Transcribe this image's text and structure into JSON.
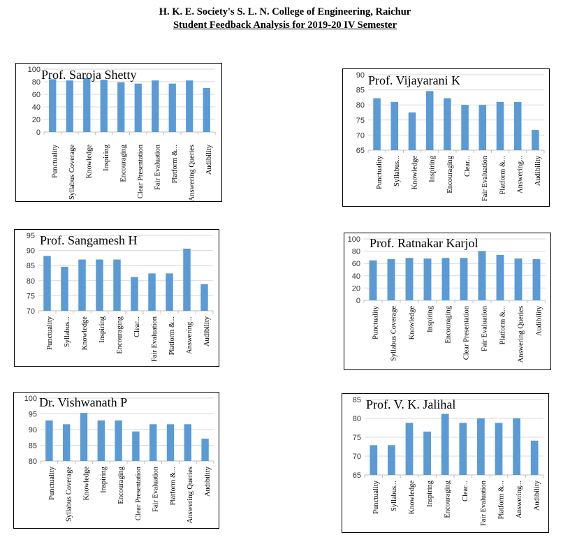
{
  "header": {
    "line1": "H. K. E. Society's S. L. N. College of Engineering, Raichur",
    "line2": "Student Feedback Analysis for 2019-20 IV Semester"
  },
  "colors": {
    "bar": "#5b9bd5",
    "grid": "#d9d9d9",
    "axis": "#bfbfbf"
  },
  "chart_data": [
    {
      "type": "bar",
      "title": "Prof. Saroja Shetty",
      "categories": [
        "Punctuality",
        "Syllabus Coverage",
        "Knowledge",
        "Inspiring",
        "Encouraging",
        "Clear Presentation",
        "Fair Evaluation",
        "Platform &...",
        "Answering Queries",
        "Audibility"
      ],
      "values": [
        84,
        82,
        86,
        83,
        79,
        77,
        82,
        77,
        82,
        70
      ],
      "ylim": [
        0,
        100
      ],
      "yticks": [
        0,
        20,
        40,
        60,
        80,
        100
      ],
      "grid": true
    },
    {
      "type": "bar",
      "title": "Prof. Vijayarani K",
      "categories": [
        "Punctuality",
        "Syllabus...",
        "Knowledge",
        "Inspiring",
        "Encouraging",
        "Clear...",
        "Fair Evaluation",
        "Platform &...",
        "Answering...",
        "Audibility"
      ],
      "values": [
        82.2,
        81,
        77.5,
        84.6,
        82.2,
        80,
        80,
        81,
        81,
        71.7
      ],
      "ylim": [
        65,
        90
      ],
      "yticks": [
        65,
        70,
        75,
        80,
        85,
        90
      ],
      "grid": true
    },
    {
      "type": "bar",
      "title": "Prof. Sangamesh H",
      "categories": [
        "Punctuality",
        "Syllabus...",
        "Knowledge",
        "Inspiring",
        "Encouraging",
        "Clear...",
        "Fair Evaluation",
        "Platform &...",
        "Answering...",
        "Audibility"
      ],
      "values": [
        88.2,
        84.6,
        87,
        87,
        87,
        81.2,
        82.4,
        82.4,
        90.6,
        78.8
      ],
      "ylim": [
        70,
        95
      ],
      "yticks": [
        70,
        75,
        80,
        85,
        90,
        95
      ],
      "grid": true
    },
    {
      "type": "bar",
      "title": "Prof. Ratnakar Karjol",
      "categories": [
        "Punctuality",
        "Syllabus Coverage",
        "Knowledge",
        "Inspiring",
        "Encouraging",
        "Clear Presentation",
        "Fair Evaluation",
        "Platform &...",
        "Answering Queries",
        "Audibility"
      ],
      "values": [
        65,
        67,
        69,
        68,
        69,
        69,
        80,
        74,
        68,
        67
      ],
      "ylim": [
        0,
        100
      ],
      "yticks": [
        0,
        20,
        40,
        60,
        80,
        100
      ],
      "grid": true
    },
    {
      "type": "bar",
      "title": "Dr. Vishwanath P",
      "categories": [
        "Punctuality",
        "Syllabus Coverage",
        "Knowledge",
        "Inspiring",
        "Encouraging",
        "Clear Presentation",
        "Fair Evaluation",
        "Platform &...",
        "Answering Queries",
        "Audibility"
      ],
      "values": [
        92.9,
        91.7,
        95.3,
        92.9,
        92.9,
        89.4,
        91.7,
        91.7,
        91.7,
        87.1
      ],
      "ylim": [
        80,
        100
      ],
      "yticks": [
        80,
        85,
        90,
        95,
        100
      ],
      "grid": true
    },
    {
      "type": "bar",
      "title": "Prof. V. K. Jalihal",
      "categories": [
        "Punctuality",
        "Syllabus...",
        "Knowledge",
        "Inspiring",
        "Encouraging",
        "Clear...",
        "Fair Evaluation",
        "Platform &...",
        "Answering...",
        "Audibility"
      ],
      "values": [
        72.9,
        72.9,
        78.8,
        76.5,
        81.2,
        78.8,
        80,
        78.8,
        80,
        74.1
      ],
      "ylim": [
        65,
        85
      ],
      "yticks": [
        65,
        70,
        75,
        80,
        85
      ],
      "grid": true
    }
  ]
}
